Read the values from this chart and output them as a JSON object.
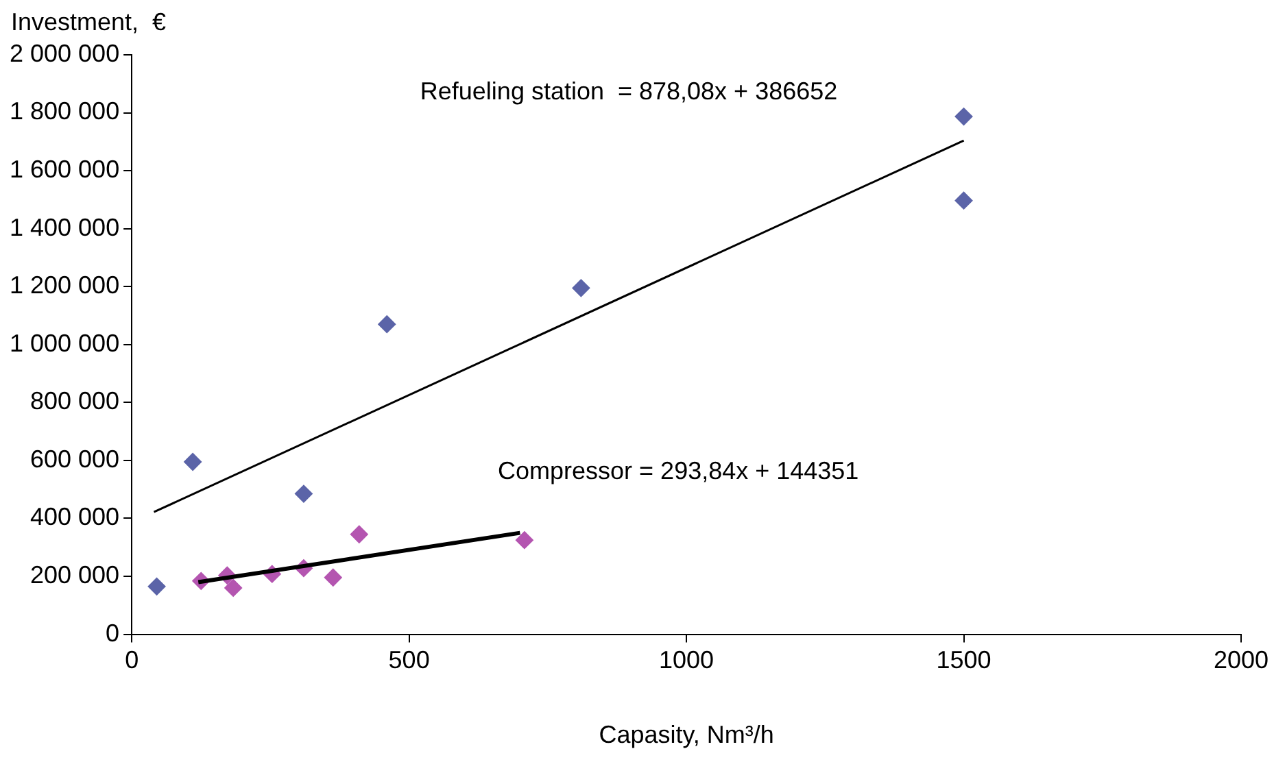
{
  "chart_data": {
    "type": "scatter",
    "xlabel": "Capasity, Nm³/h",
    "ylabel": "Investment,  €",
    "xlim": [
      0,
      2000
    ],
    "xticks": [
      0,
      500,
      1000,
      1500,
      2000
    ],
    "ylim": [
      0,
      2000000
    ],
    "yticks": [
      {
        "value": 0,
        "label": "0"
      },
      {
        "value": 200000,
        "label": "200 000"
      },
      {
        "value": 400000,
        "label": "400 000"
      },
      {
        "value": 600000,
        "label": "600 000"
      },
      {
        "value": 800000,
        "label": "800 000"
      },
      {
        "value": 1000000,
        "label": "1 000 000"
      },
      {
        "value": 1200000,
        "label": "1 200 000"
      },
      {
        "value": 1400000,
        "label": "1 400 000"
      },
      {
        "value": 1600000,
        "label": "1 600 000"
      },
      {
        "value": 1800000,
        "label": "1 800 000"
      },
      {
        "value": 2000000,
        "label": "2 000 000"
      }
    ],
    "series": [
      {
        "color": "#5b64a8",
        "x": [
          45,
          110,
          310,
          460,
          810,
          1500,
          1500
        ],
        "values": [
          165000,
          595000,
          485000,
          1070000,
          1195000,
          1787000,
          1497000
        ]
      },
      {
        "color": "#b455b0",
        "x": [
          125,
          172,
          183,
          253,
          310,
          363,
          410,
          708
        ],
        "values": [
          184000,
          203000,
          160000,
          208000,
          228000,
          196000,
          345000,
          325000
        ]
      },
      {
        "type": "line",
        "marker": "none",
        "color": "#000000",
        "x": [
          40,
          1500
        ],
        "values": [
          422000,
          1704000
        ]
      },
      {
        "type": "line",
        "marker": "none",
        "color": "#000000",
        "x": [
          120,
          700
        ],
        "values": [
          180000,
          350000
        ]
      }
    ],
    "annotations": [
      "Refueling station  = 878,08x + 386652",
      "Compressor = 293,84x + 144351"
    ],
    "marker": "diamond",
    "grid": false,
    "legend": false
  }
}
